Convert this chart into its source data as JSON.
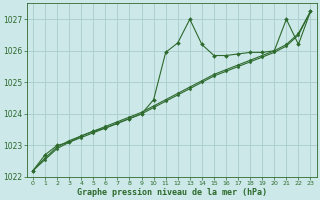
{
  "x": [
    0,
    1,
    2,
    3,
    4,
    5,
    6,
    7,
    8,
    9,
    10,
    11,
    12,
    13,
    14,
    15,
    16,
    17,
    18,
    19,
    20,
    21,
    22,
    23
  ],
  "line_jagged": [
    1022.2,
    1022.7,
    1023.0,
    1023.1,
    1023.3,
    1023.45,
    1023.55,
    1023.7,
    1023.85,
    1024.0,
    1024.45,
    1025.95,
    1026.25,
    1027.0,
    1026.2,
    1025.85,
    1025.85,
    1025.9,
    1025.95,
    1025.95,
    1026.0,
    1027.0,
    1026.2,
    1027.25
  ],
  "line_smooth1": [
    1022.2,
    1022.55,
    1022.9,
    1023.1,
    1023.25,
    1023.4,
    1023.55,
    1023.7,
    1023.85,
    1024.0,
    1024.2,
    1024.4,
    1024.6,
    1024.8,
    1025.0,
    1025.2,
    1025.35,
    1025.5,
    1025.65,
    1025.8,
    1025.95,
    1026.15,
    1026.5,
    1027.25
  ],
  "line_smooth2": [
    1022.2,
    1022.6,
    1022.95,
    1023.15,
    1023.3,
    1023.45,
    1023.6,
    1023.75,
    1023.9,
    1024.05,
    1024.25,
    1024.45,
    1024.65,
    1024.85,
    1025.05,
    1025.25,
    1025.4,
    1025.55,
    1025.7,
    1025.85,
    1026.0,
    1026.2,
    1026.55,
    1027.25
  ],
  "bg_color": "#cce8e8",
  "grid_color": "#aacccc",
  "line_color": "#2d6a2d",
  "marker_color": "#2d6a2d",
  "xlabel": "Graphe pression niveau de la mer (hPa)",
  "ylim": [
    1022.0,
    1027.5
  ],
  "xlim": [
    -0.5,
    23.5
  ],
  "yticks": [
    1022,
    1023,
    1024,
    1025,
    1026,
    1027
  ],
  "xticks": [
    0,
    1,
    2,
    3,
    4,
    5,
    6,
    7,
    8,
    9,
    10,
    11,
    12,
    13,
    14,
    15,
    16,
    17,
    18,
    19,
    20,
    21,
    22,
    23
  ]
}
